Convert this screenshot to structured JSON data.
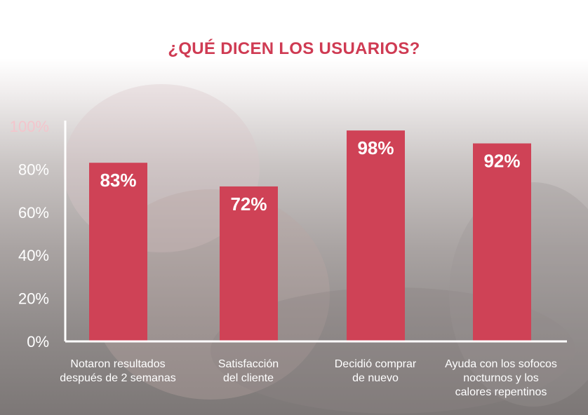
{
  "title": "¿QUÉ DICEN LOS USUARIOS?",
  "colors": {
    "title": "#cf3b53",
    "bar": "#cf4256",
    "axis": "#ffffff",
    "label": "#ffffff"
  },
  "chart_data": {
    "type": "bar",
    "categories": [
      [
        "Notaron resultados",
        "después de 2 semanas"
      ],
      [
        "Satisfacción",
        "del cliente"
      ],
      [
        "Decidió comprar",
        "de nuevo"
      ],
      [
        "Ayuda con los sofocos",
        "nocturnos y los",
        "calores repentinos"
      ]
    ],
    "values": [
      83,
      72,
      98,
      92
    ],
    "data_labels": [
      "83%",
      "72%",
      "98%",
      "92%"
    ],
    "yticks": [
      "0%",
      "20%",
      "40%",
      "60%",
      "80%",
      "100%"
    ],
    "ylim": [
      0,
      100
    ],
    "title": "¿QUÉ DICEN LOS USUARIOS?",
    "grid": false,
    "legend": false
  }
}
